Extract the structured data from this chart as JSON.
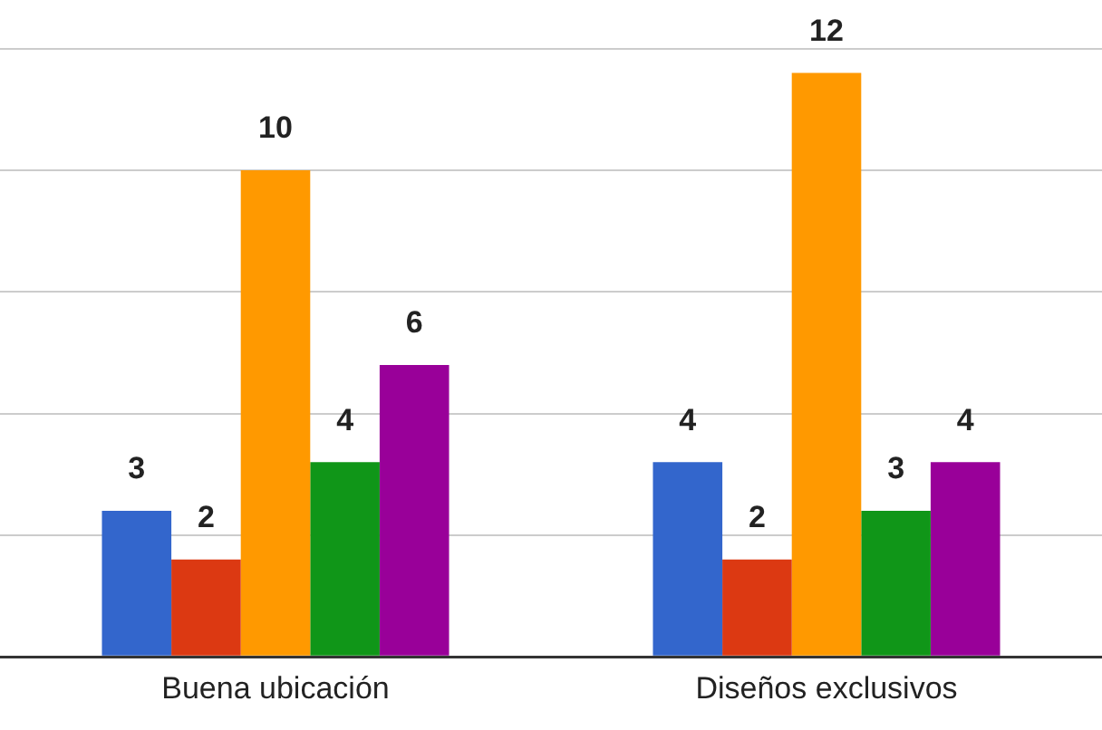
{
  "chart_data": {
    "type": "bar",
    "categories": [
      "Buena ubicación",
      "Diseños exclusivos"
    ],
    "series": [
      {
        "color": "#3366cc",
        "values": [
          3,
          4
        ]
      },
      {
        "color": "#dc3912",
        "values": [
          2,
          2
        ]
      },
      {
        "color": "#ff9900",
        "values": [
          10,
          12
        ]
      },
      {
        "color": "#109618",
        "values": [
          4,
          3
        ]
      },
      {
        "color": "#990099",
        "values": [
          6,
          4
        ]
      }
    ],
    "ylim": [
      0,
      13.5
    ],
    "yticks": [
      {
        "value": 0,
        "label": null
      },
      {
        "value": 2.5,
        "label": null
      },
      {
        "value": 5,
        "label": null
      },
      {
        "value": 7.5,
        "label": null
      },
      {
        "value": 10,
        "label": null
      },
      {
        "value": 12.5,
        "label": null
      }
    ],
    "grid": "y",
    "tick_labels": "x",
    "data_labels": true,
    "legend": false
  }
}
